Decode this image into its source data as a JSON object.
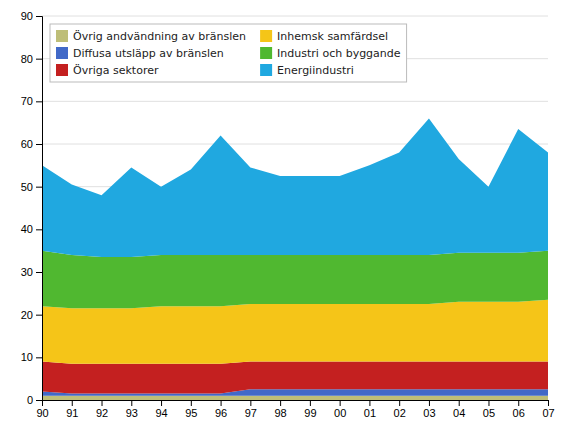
{
  "chart_data": {
    "type": "area",
    "stacked": true,
    "categories": [
      "90",
      "91",
      "92",
      "93",
      "94",
      "95",
      "96",
      "97",
      "98",
      "99",
      "00",
      "01",
      "02",
      "03",
      "04",
      "05",
      "06",
      "07"
    ],
    "series": [
      {
        "name": "Övrig andvändning av bränslen",
        "color": "#BEBE78",
        "values": [
          1.0,
          1.0,
          1.0,
          1.0,
          1.0,
          1.0,
          1.0,
          1.0,
          1.0,
          1.0,
          1.0,
          1.0,
          1.0,
          1.0,
          1.0,
          1.0,
          1.0,
          1.0
        ]
      },
      {
        "name": "Diffusa utsläpp av bränslen",
        "color": "#4169C8",
        "values": [
          1.0,
          0.5,
          0.5,
          0.5,
          0.5,
          0.5,
          0.5,
          1.5,
          1.5,
          1.5,
          1.5,
          1.5,
          1.5,
          1.5,
          1.5,
          1.5,
          1.5,
          1.5
        ]
      },
      {
        "name": "Övriga sektorer",
        "color": "#C42020",
        "values": [
          7.0,
          7.0,
          7.0,
          7.0,
          7.0,
          7.0,
          7.0,
          6.5,
          6.5,
          6.5,
          6.5,
          6.5,
          6.5,
          6.5,
          6.5,
          6.5,
          6.5,
          6.5
        ]
      },
      {
        "name": "Inhemsk samfärdsel",
        "color": "#F5C518",
        "values": [
          13.0,
          13.0,
          13.0,
          13.0,
          13.5,
          13.5,
          13.5,
          13.5,
          13.5,
          13.5,
          13.5,
          13.5,
          13.5,
          13.5,
          14.0,
          14.0,
          14.0,
          14.5
        ]
      },
      {
        "name": "Industri och byggande",
        "color": "#50B830",
        "values": [
          13.0,
          12.5,
          12.0,
          12.0,
          12.0,
          12.0,
          12.0,
          11.5,
          11.5,
          11.5,
          11.5,
          11.5,
          11.5,
          11.5,
          11.5,
          11.5,
          11.5,
          11.5
        ]
      },
      {
        "name": "Energiindustri",
        "color": "#20A8E0",
        "values": [
          20.0,
          16.5,
          14.5,
          21.0,
          16.0,
          20.0,
          28.0,
          20.5,
          18.5,
          18.5,
          18.5,
          21.0,
          24.0,
          32.0,
          22.0,
          15.5,
          29.0,
          23.0
        ]
      }
    ],
    "ylim": [
      0,
      90
    ],
    "yticks": [
      0,
      10,
      20,
      30,
      40,
      50,
      60,
      70,
      80,
      90
    ],
    "grid": true,
    "legend": "upper left"
  }
}
